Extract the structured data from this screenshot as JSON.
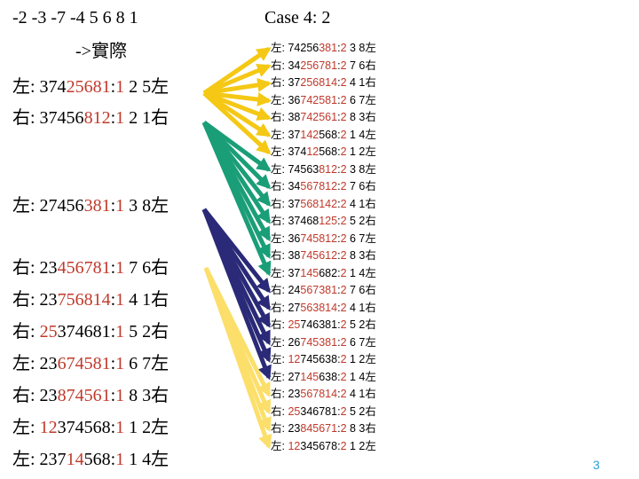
{
  "header_left": "-2 -3 -7 -4 5 6 8 1",
  "subheader": "->實際",
  "case_title": "Case 4: 2",
  "page_number": "3",
  "colors": {
    "yellow": "#f4c815",
    "green": "#1a9e77",
    "navy": "#2a2a78",
    "lightyellow": "#fbdf6a",
    "red": "#c0392b"
  },
  "left_rows": [
    {
      "side": "左",
      "pre": ": 374",
      "hl": "25681",
      "mid": ":",
      "lvl": "1",
      "rest": " 2 5左"
    },
    {
      "side": "右",
      "pre": ": 37456",
      "hl": "812",
      "mid": ":",
      "lvl": "1",
      "rest": " 2 1右"
    },
    {
      "side": "左",
      "pre": ": 27456",
      "hl": "381",
      "mid": ":",
      "lvl": "1",
      "rest": " 3 8左"
    },
    {
      "side": "右",
      "pre": ": 23",
      "hl": "456781",
      "mid": ":",
      "lvl": "1",
      "rest": " 7 6右"
    },
    {
      "side": "右",
      "pre": ": 23",
      "hl": "756814",
      "mid": ":",
      "lvl": "1",
      "rest": " 4 1右"
    },
    {
      "side": "右",
      "pre": ": ",
      "hl": "25",
      "mid": "374681:",
      "lvl": "1",
      "rest": " 5 2右"
    },
    {
      "side": "左",
      "pre": ": 23",
      "hl": "674581",
      "mid": ":",
      "lvl": "1",
      "rest": " 6 7左"
    },
    {
      "side": "右",
      "pre": ": 23",
      "hl": "874561",
      "mid": ":",
      "lvl": "1",
      "rest": " 8 3右"
    },
    {
      "side": "左",
      "pre": ": ",
      "hl": "12",
      "mid": "374568:",
      "lvl": "1",
      "rest": " 1 2左"
    },
    {
      "side": "左",
      "pre": ": 237",
      "hl": "14",
      "mid": "568:",
      "lvl": "1",
      "rest": " 1 4左"
    }
  ],
  "right_rows": [
    {
      "side": "左",
      "pre": ": 74256",
      "hl": "381",
      "mid": ":",
      "lvl": "2",
      "rest": " 3 8左"
    },
    {
      "side": "右",
      "pre": ": 34",
      "hl": "256781",
      "mid": ":",
      "lvl": "2",
      "rest": " 7 6右"
    },
    {
      "side": "右",
      "pre": ": 37",
      "hl": "256814",
      "mid": ":",
      "lvl": "2",
      "rest": " 4 1右"
    },
    {
      "side": "左",
      "pre": ": 36",
      "hl": "742581",
      "mid": ":",
      "lvl": "2",
      "rest": " 6 7左"
    },
    {
      "side": "右",
      "pre": ": 38",
      "hl": "742561",
      "mid": ":",
      "lvl": "2",
      "rest": " 8 3右"
    },
    {
      "side": "左",
      "pre": ": 37",
      "hl": "142",
      "mid": "568:",
      "lvl": "2",
      "rest": " 1 4左"
    },
    {
      "side": "左",
      "pre": ": 374",
      "hl": "12",
      "mid": "568:",
      "lvl": "2",
      "rest": " 1 2左"
    },
    {
      "side": "左",
      "pre": ": 74563",
      "hl": "812",
      "mid": ":",
      "lvl": "2",
      "rest": " 3 8左"
    },
    {
      "side": "右",
      "pre": ": 34",
      "hl": "567812",
      "mid": ":",
      "lvl": "2",
      "rest": " 7 6右"
    },
    {
      "side": "右",
      "pre": ": 37",
      "hl": "568142",
      "mid": ":",
      "lvl": "2",
      "rest": " 4 1右"
    },
    {
      "side": "右",
      "pre": ": 37468",
      "hl": "125",
      "mid": ":",
      "lvl": "2",
      "rest": " 5 2右"
    },
    {
      "side": "左",
      "pre": ": 36",
      "hl": "745812",
      "mid": ":",
      "lvl": "2",
      "rest": " 6 7左"
    },
    {
      "side": "右",
      "pre": ": 38",
      "hl": "745612",
      "mid": ":",
      "lvl": "2",
      "rest": " 8 3右"
    },
    {
      "side": "左",
      "pre": ": 37",
      "hl": "145",
      "mid": "682:",
      "lvl": "2",
      "rest": " 1 4左"
    },
    {
      "side": "右",
      "pre": ": 24",
      "hl": "567381",
      "mid": ":",
      "lvl": "2",
      "rest": " 7 6右"
    },
    {
      "side": "右",
      "pre": ": 27",
      "hl": "563814",
      "mid": ":",
      "lvl": "2",
      "rest": " 4 1右"
    },
    {
      "side": "右",
      "pre": ": ",
      "hl": "25",
      "mid": "746381:",
      "lvl": "2",
      "rest": " 5 2右"
    },
    {
      "side": "左",
      "pre": ": 26",
      "hl": "745381",
      "mid": ":",
      "lvl": "2",
      "rest": " 6 7左"
    },
    {
      "side": "左",
      "pre": ": ",
      "hl": "12",
      "mid": "745638:",
      "lvl": "2",
      "rest": " 1 2左"
    },
    {
      "side": "左",
      "pre": ": 27",
      "hl": "145",
      "mid": "638:",
      "lvl": "2",
      "rest": " 1 4左"
    },
    {
      "side": "右",
      "pre": ": 23",
      "hl": "567814",
      "mid": ":",
      "lvl": "2",
      "rest": " 4 1右"
    },
    {
      "side": "右",
      "pre": ": ",
      "hl": "25",
      "mid": "346781:",
      "lvl": "2",
      "rest": " 5 2右"
    },
    {
      "side": "右",
      "pre": ": 23",
      "hl": "845671",
      "mid": ":",
      "lvl": "2",
      "rest": " 8 3右"
    },
    {
      "side": "左",
      "pre": ": ",
      "hl": "12",
      "mid": "345678:",
      "lvl": "2",
      "rest": " 1 2左"
    }
  ],
  "edges": [
    {
      "from": 0,
      "color": "yellow",
      "to": [
        0,
        1,
        2,
        3,
        4,
        5,
        6
      ]
    },
    {
      "from": 1,
      "color": "green",
      "to": [
        7,
        8,
        9,
        10,
        11,
        12,
        13
      ]
    },
    {
      "from": 2,
      "color": "navy",
      "to": [
        14,
        15,
        16,
        17,
        18,
        19
      ]
    },
    {
      "from": 3,
      "color": "lightyellow",
      "to": [
        20,
        21,
        22,
        23
      ]
    }
  ]
}
